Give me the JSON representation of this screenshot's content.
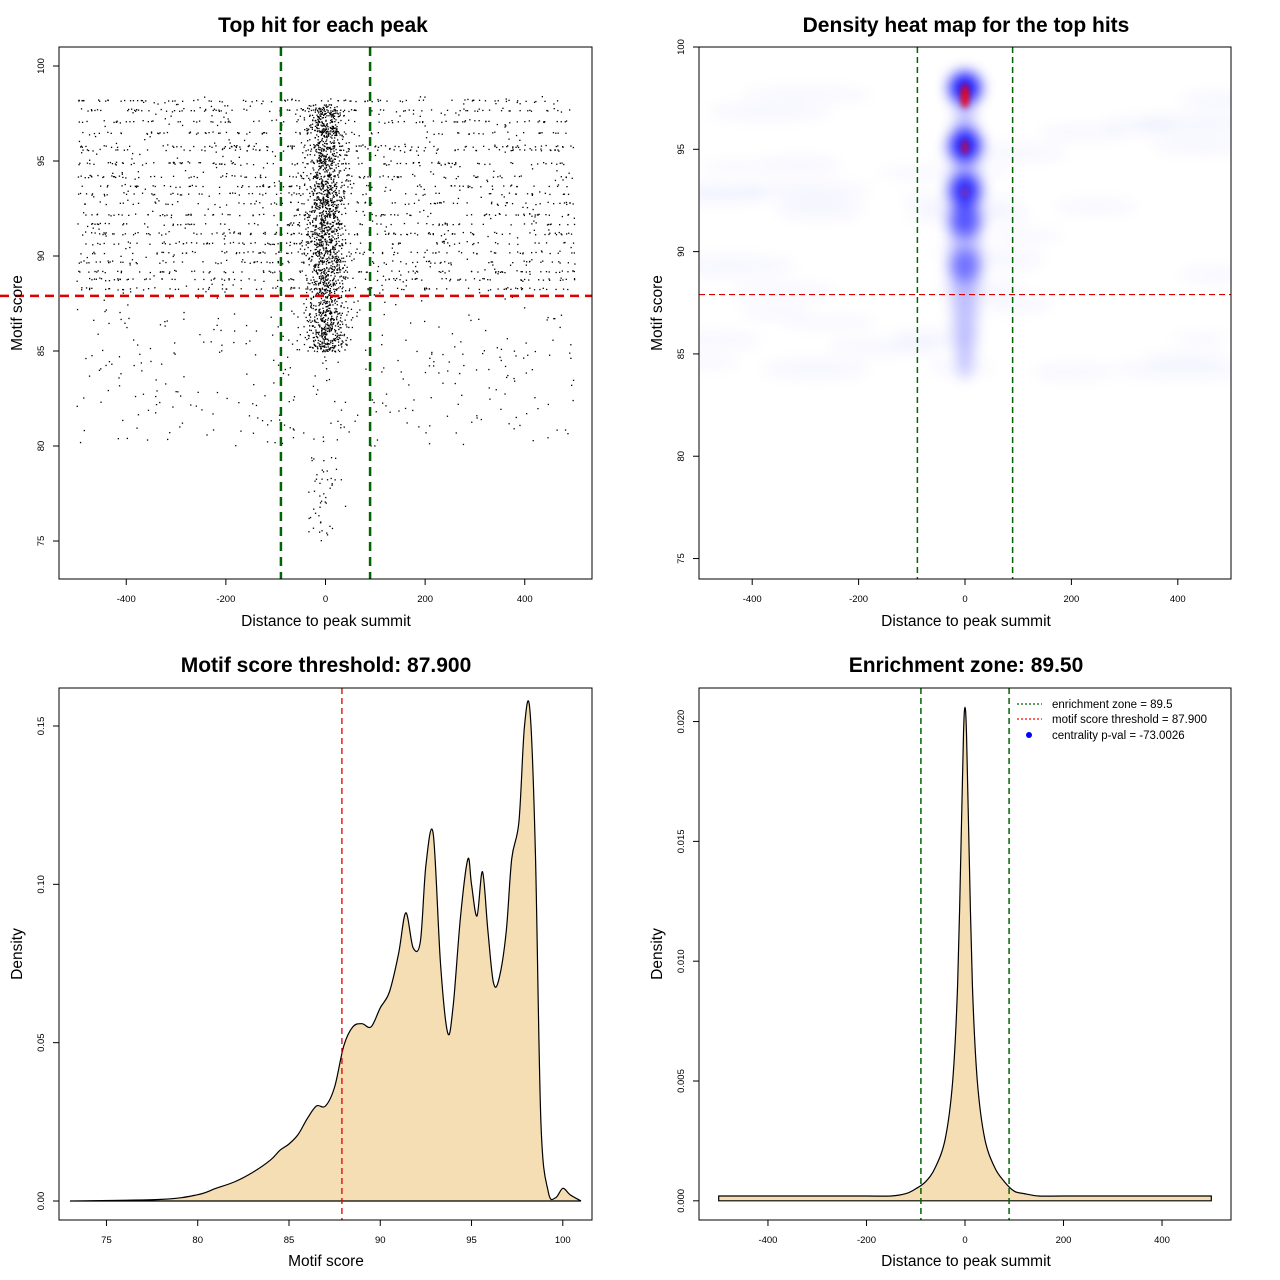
{
  "chart_data": [
    {
      "id": "scatter",
      "type": "scatter",
      "title": "Top hit for each peak",
      "xlabel": "Distance to peak summit",
      "ylabel": "Motif score",
      "xlim": [
        -535,
        535
      ],
      "ylim": [
        73,
        101
      ],
      "xticks": [
        -400,
        -200,
        0,
        200,
        400
      ],
      "yticks": [
        75,
        80,
        85,
        90,
        95,
        100
      ],
      "xtick_labels": [
        "-400",
        "-200",
        "0",
        "200",
        "400"
      ],
      "ytick_labels": [
        "75",
        "80",
        "85",
        "90",
        "95",
        "100"
      ],
      "point_count": 4200,
      "distance_range": [
        -500,
        500
      ],
      "score_levels": [
        98.2,
        97.7,
        97.1,
        96.5,
        95.8,
        95.6,
        94.9,
        94.2,
        93.7,
        93.3,
        92.8,
        92.2,
        91.7,
        91.2,
        90.7,
        90.2,
        89.7,
        89.2,
        88.8,
        88.3
      ],
      "score_threshold": 87.9,
      "enrichment_zone": [
        -89.5,
        89.5
      ]
    },
    {
      "id": "heatmap",
      "type": "heatmap",
      "title": "Density heat map for the top hits",
      "xlabel": "Distance to peak summit",
      "ylabel": "Motif score",
      "xlim": [
        -500,
        500
      ],
      "ylim": [
        74,
        100
      ],
      "xticks": [
        -400,
        -200,
        0,
        200,
        400
      ],
      "yticks": [
        75,
        80,
        85,
        90,
        95,
        100
      ],
      "xtick_labels": [
        "-400",
        "-200",
        "0",
        "200",
        "400"
      ],
      "ytick_labels": [
        "75",
        "80",
        "85",
        "90",
        "95",
        "100"
      ],
      "hotspots": [
        {
          "x": 0,
          "y": 98.0,
          "intensity": 1.0
        },
        {
          "x": 0,
          "y": 95.2,
          "intensity": 0.95
        },
        {
          "x": 0,
          "y": 93.0,
          "intensity": 0.85
        },
        {
          "x": 0,
          "y": 91.5,
          "intensity": 0.6
        },
        {
          "x": 0,
          "y": 89.3,
          "intensity": 0.45
        }
      ],
      "score_threshold": 87.9,
      "enrichment_zone": [
        -89.5,
        89.5
      ]
    },
    {
      "id": "scoredensity",
      "type": "area",
      "title": "Motif score threshold: 87.900",
      "xlabel": "Motif score",
      "ylabel": "Density",
      "xlim": [
        72.4,
        101.6
      ],
      "ylim": [
        -0.006,
        0.162
      ],
      "xticks": [
        75,
        80,
        85,
        90,
        95,
        100
      ],
      "yticks": [
        0.0,
        0.05,
        0.1,
        0.15
      ],
      "xtick_labels": [
        "75",
        "80",
        "85",
        "90",
        "95",
        "100"
      ],
      "ytick_labels": [
        "0.00",
        "0.05",
        "0.10",
        "0.15"
      ],
      "x": [
        73,
        78,
        80,
        81,
        82,
        83,
        84,
        84.5,
        85,
        85.5,
        86,
        86.5,
        87,
        87.5,
        88,
        88.5,
        89,
        89.5,
        90,
        90.5,
        91,
        91.4,
        91.8,
        92.2,
        92.5,
        92.9,
        93.3,
        93.7,
        94.0,
        94.4,
        94.8,
        95.0,
        95.3,
        95.6,
        95.9,
        96.2,
        96.5,
        96.9,
        97.2,
        97.6,
        97.9,
        98.2,
        98.5,
        98.8,
        99.2,
        99.6,
        100.0,
        100.4,
        101
      ],
      "y": [
        0.0,
        0.0005,
        0.002,
        0.004,
        0.006,
        0.009,
        0.013,
        0.016,
        0.018,
        0.021,
        0.026,
        0.03,
        0.03,
        0.036,
        0.049,
        0.055,
        0.056,
        0.055,
        0.061,
        0.066,
        0.078,
        0.091,
        0.08,
        0.082,
        0.106,
        0.116,
        0.075,
        0.053,
        0.062,
        0.09,
        0.108,
        0.1,
        0.09,
        0.104,
        0.085,
        0.069,
        0.07,
        0.085,
        0.108,
        0.12,
        0.15,
        0.155,
        0.11,
        0.025,
        0.003,
        0.001,
        0.004,
        0.002,
        0.0
      ],
      "threshold": 87.9
    },
    {
      "id": "distdensity",
      "type": "area",
      "title": "Enrichment zone: 89.50",
      "xlabel": "Distance to peak summit",
      "ylabel": "Density",
      "xlim": [
        -540,
        540
      ],
      "ylim": [
        -0.0008,
        0.0214
      ],
      "xticks": [
        -400,
        -200,
        0,
        200,
        400
      ],
      "yticks": [
        0.0,
        0.005,
        0.01,
        0.015,
        0.02
      ],
      "xtick_labels": [
        "-400",
        "-200",
        "0",
        "200",
        "400"
      ],
      "ytick_labels": [
        "0.000",
        "0.005",
        "0.010",
        "0.015",
        "0.020"
      ],
      "x": [
        -500,
        -400,
        -300,
        -200,
        -150,
        -120,
        -100,
        -80,
        -60,
        -40,
        -25,
        -15,
        -8,
        -3,
        0,
        3,
        8,
        15,
        25,
        40,
        60,
        80,
        100,
        120,
        150,
        200,
        300,
        400,
        500
      ],
      "y": [
        0.0002,
        0.0002,
        0.0002,
        0.0002,
        0.0002,
        0.0003,
        0.0005,
        0.0008,
        0.0014,
        0.0026,
        0.005,
        0.009,
        0.015,
        0.0195,
        0.0206,
        0.0195,
        0.015,
        0.009,
        0.005,
        0.0026,
        0.0014,
        0.0008,
        0.0004,
        0.0003,
        0.0002,
        0.0002,
        0.0002,
        0.0002,
        0.0002
      ],
      "enrichment_zone": [
        -89.5,
        89.5
      ],
      "legend_position": "top-right",
      "legend": [
        {
          "label": "enrichment zone = 89.5",
          "style": "dotted",
          "color": "#006400"
        },
        {
          "label": "motif score threshold = 87.900",
          "style": "dotted",
          "color": "#ff0000"
        },
        {
          "label": "centrality p-val = -73.0026",
          "style": "point",
          "color": "#0000ff"
        }
      ]
    }
  ],
  "colors": {
    "zone_line": "#006400",
    "threshold_line": "#dd0000",
    "fill": "#f5deb3",
    "heat_low": "#0000ff",
    "heat_high": "#ff0000"
  }
}
